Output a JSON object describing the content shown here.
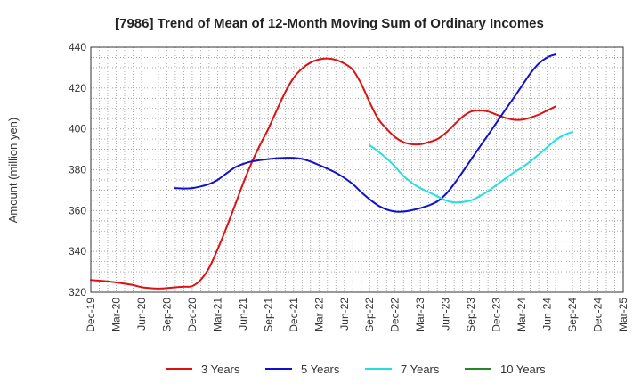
{
  "chart_data": {
    "type": "line",
    "title": "[7986]  Trend of Mean of 12-Month Moving Sum of Ordinary Incomes",
    "xlabel": "",
    "ylabel": "Amount (million yen)",
    "ylim": [
      320,
      440
    ],
    "yticks": [
      320,
      340,
      360,
      380,
      400,
      420,
      440
    ],
    "x_categories": [
      "Dec-19",
      "Mar-20",
      "Jun-20",
      "Sep-20",
      "Dec-20",
      "Mar-21",
      "Jun-21",
      "Sep-21",
      "Dec-21",
      "Mar-22",
      "Jun-22",
      "Sep-22",
      "Dec-22",
      "Mar-23",
      "Jun-23",
      "Sep-23",
      "Dec-23",
      "Mar-24",
      "Jun-24",
      "Sep-24",
      "Dec-24",
      "Mar-25"
    ],
    "grid": true,
    "legend_position": "bottom",
    "series": [
      {
        "name": "3 Years",
        "color": "#dd1111",
        "points": [
          [
            0,
            326
          ],
          [
            0.33,
            325.7
          ],
          [
            0.67,
            325.3
          ],
          [
            1,
            324.8
          ],
          [
            1.33,
            324.2
          ],
          [
            1.67,
            323.5
          ],
          [
            2,
            322.5
          ],
          [
            2.33,
            322
          ],
          [
            2.67,
            321.8
          ],
          [
            3,
            322
          ],
          [
            3.33,
            322.4
          ],
          [
            3.67,
            322.7
          ],
          [
            4,
            323
          ],
          [
            4.33,
            326
          ],
          [
            4.67,
            332
          ],
          [
            5,
            341
          ],
          [
            5.33,
            351
          ],
          [
            5.67,
            362
          ],
          [
            6,
            373
          ],
          [
            6.33,
            383
          ],
          [
            6.67,
            392
          ],
          [
            7,
            400
          ],
          [
            7.33,
            409
          ],
          [
            7.67,
            418
          ],
          [
            8,
            425
          ],
          [
            8.33,
            429.5
          ],
          [
            8.67,
            432.5
          ],
          [
            9,
            434
          ],
          [
            9.33,
            434.5
          ],
          [
            9.67,
            433.8
          ],
          [
            10,
            432
          ],
          [
            10.33,
            429
          ],
          [
            10.67,
            422
          ],
          [
            11,
            413
          ],
          [
            11.33,
            405
          ],
          [
            11.67,
            400
          ],
          [
            12,
            396
          ],
          [
            12.33,
            393.5
          ],
          [
            12.67,
            392.5
          ],
          [
            13,
            392.5
          ],
          [
            13.33,
            393.5
          ],
          [
            13.67,
            395
          ],
          [
            14,
            398
          ],
          [
            14.33,
            402
          ],
          [
            14.67,
            406
          ],
          [
            15,
            408.5
          ],
          [
            15.33,
            409
          ],
          [
            15.67,
            408.5
          ],
          [
            16,
            407
          ],
          [
            16.33,
            405.5
          ],
          [
            16.67,
            404.5
          ],
          [
            17,
            404.5
          ],
          [
            17.33,
            405.5
          ],
          [
            17.67,
            407
          ],
          [
            18,
            409
          ],
          [
            18.33,
            411
          ]
        ]
      },
      {
        "name": "5 Years",
        "color": "#1111cc",
        "points": [
          [
            3.33,
            371
          ],
          [
            3.67,
            370.8
          ],
          [
            4,
            371
          ],
          [
            4.33,
            371.8
          ],
          [
            4.67,
            373
          ],
          [
            5,
            375
          ],
          [
            5.33,
            378
          ],
          [
            5.67,
            381
          ],
          [
            6,
            382.8
          ],
          [
            6.33,
            384
          ],
          [
            6.67,
            384.7
          ],
          [
            7,
            385.2
          ],
          [
            7.33,
            385.6
          ],
          [
            7.67,
            385.8
          ],
          [
            8,
            385.8
          ],
          [
            8.33,
            385.3
          ],
          [
            8.67,
            384
          ],
          [
            9,
            382.3
          ],
          [
            9.33,
            380.5
          ],
          [
            9.67,
            378.5
          ],
          [
            10,
            376
          ],
          [
            10.33,
            373
          ],
          [
            10.67,
            369
          ],
          [
            11,
            365.5
          ],
          [
            11.33,
            362.5
          ],
          [
            11.67,
            360.5
          ],
          [
            12,
            359.5
          ],
          [
            12.33,
            359.5
          ],
          [
            12.67,
            360.2
          ],
          [
            13,
            361.2
          ],
          [
            13.33,
            362.5
          ],
          [
            13.67,
            364.5
          ],
          [
            14,
            368
          ],
          [
            14.33,
            373
          ],
          [
            14.67,
            379
          ],
          [
            15,
            385
          ],
          [
            15.33,
            391
          ],
          [
            15.67,
            397
          ],
          [
            16,
            403
          ],
          [
            16.33,
            409
          ],
          [
            16.67,
            415
          ],
          [
            17,
            421
          ],
          [
            17.33,
            427
          ],
          [
            17.67,
            432
          ],
          [
            18,
            435
          ],
          [
            18.33,
            436.5
          ]
        ]
      },
      {
        "name": "7 Years",
        "color": "#22e0e0",
        "points": [
          [
            11,
            392
          ],
          [
            11.33,
            389
          ],
          [
            11.67,
            385.5
          ],
          [
            12,
            381.5
          ],
          [
            12.33,
            377
          ],
          [
            12.67,
            373.5
          ],
          [
            13,
            371
          ],
          [
            13.33,
            369
          ],
          [
            13.67,
            367
          ],
          [
            14,
            365
          ],
          [
            14.33,
            364
          ],
          [
            14.67,
            364.2
          ],
          [
            15,
            365
          ],
          [
            15.33,
            367
          ],
          [
            15.67,
            369.5
          ],
          [
            16,
            372.5
          ],
          [
            16.33,
            375.5
          ],
          [
            16.67,
            378.5
          ],
          [
            17,
            381
          ],
          [
            17.33,
            384
          ],
          [
            17.67,
            387.5
          ],
          [
            18,
            391
          ],
          [
            18.33,
            394.5
          ],
          [
            18.67,
            397
          ],
          [
            19,
            398.5
          ]
        ]
      },
      {
        "name": "10 Years",
        "color": "#228822",
        "points": []
      }
    ]
  }
}
